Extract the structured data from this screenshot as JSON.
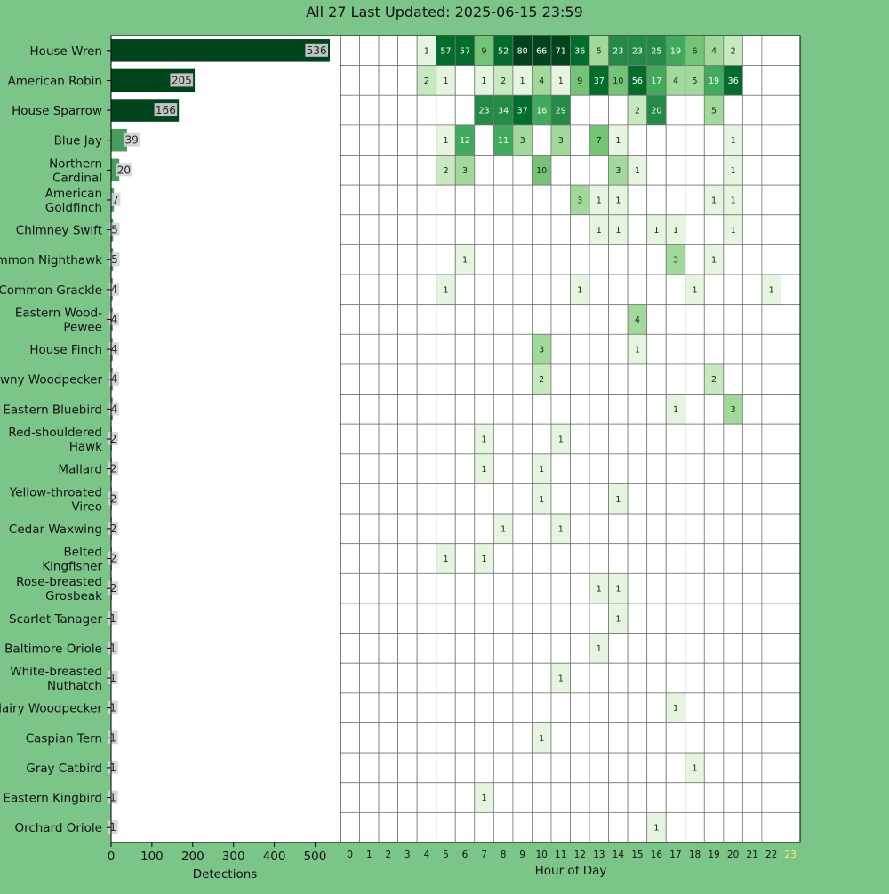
{
  "title": "All 27 Last Updated: 2025-06-15 23:59",
  "chart_data": [
    {
      "type": "bar",
      "orientation": "horizontal",
      "xlabel": "Detections",
      "xlim": [
        0,
        540
      ],
      "xticks": [
        0,
        100,
        200,
        300,
        400,
        500
      ],
      "categories": [
        "House Wren",
        "American Robin",
        "House Sparrow",
        "Blue Jay",
        "Northern Cardinal",
        "American Goldfinch",
        "Chimney Swift",
        "Common Nighthawk",
        "Common Grackle",
        "Eastern Wood-Pewee",
        "House Finch",
        "Downy Woodpecker",
        "Eastern Bluebird",
        "Red-shouldered Hawk",
        "Mallard",
        "Yellow-throated Vireo",
        "Cedar Waxwing",
        "Belted Kingfisher",
        "Rose-breasted Grosbeak",
        "Scarlet Tanager",
        "Baltimore Oriole",
        "White-breasted Nuthatch",
        "Hairy Woodpecker",
        "Caspian Tern",
        "Gray Catbird",
        "Eastern Kingbird",
        "Orchard Oriole"
      ],
      "values": [
        536,
        205,
        166,
        39,
        20,
        7,
        5,
        5,
        4,
        4,
        4,
        4,
        4,
        2,
        2,
        2,
        2,
        2,
        2,
        1,
        1,
        1,
        1,
        1,
        1,
        1,
        1
      ],
      "label_lines": [
        [
          "House Wren"
        ],
        [
          "American Robin"
        ],
        [
          "House Sparrow"
        ],
        [
          "Blue Jay"
        ],
        [
          "Northern",
          "Cardinal"
        ],
        [
          "American",
          "Goldfinch"
        ],
        [
          "Chimney Swift"
        ],
        [
          "Common Nighthawk"
        ],
        [
          "Common Grackle"
        ],
        [
          "Eastern Wood-",
          "Pewee"
        ],
        [
          "House Finch"
        ],
        [
          "Downy Woodpecker"
        ],
        [
          "Eastern Bluebird"
        ],
        [
          "Red-shouldered",
          "Hawk"
        ],
        [
          "Mallard"
        ],
        [
          "Yellow-throated",
          "Vireo"
        ],
        [
          "Cedar Waxwing"
        ],
        [
          "Belted",
          "Kingfisher"
        ],
        [
          "Rose-breasted",
          "Grosbeak"
        ],
        [
          "Scarlet Tanager"
        ],
        [
          "Baltimore Oriole"
        ],
        [
          "White-breasted",
          "Nuthatch"
        ],
        [
          "Hairy Woodpecker"
        ],
        [
          "Caspian Tern"
        ],
        [
          "Gray Catbird"
        ],
        [
          "Eastern Kingbird"
        ],
        [
          "Orchard Oriole"
        ]
      ]
    },
    {
      "type": "heatmap",
      "xlabel": "Hour of Day",
      "hours": [
        0,
        1,
        2,
        3,
        4,
        5,
        6,
        7,
        8,
        9,
        10,
        11,
        12,
        13,
        14,
        15,
        16,
        17,
        18,
        19,
        20,
        21,
        22,
        23
      ],
      "highlight_hour": 23,
      "rows": [
        [
          null,
          null,
          null,
          null,
          1,
          57,
          57,
          9,
          52,
          80,
          66,
          71,
          36,
          5,
          23,
          23,
          25,
          19,
          6,
          4,
          2,
          null,
          null,
          null
        ],
        [
          null,
          null,
          null,
          null,
          2,
          1,
          null,
          1,
          2,
          1,
          4,
          1,
          9,
          37,
          10,
          56,
          17,
          4,
          5,
          19,
          36,
          null,
          null,
          null
        ],
        [
          null,
          null,
          null,
          null,
          null,
          null,
          null,
          23,
          34,
          37,
          16,
          29,
          null,
          null,
          null,
          2,
          20,
          null,
          null,
          5,
          null,
          null,
          null,
          null
        ],
        [
          null,
          null,
          null,
          null,
          null,
          1,
          12,
          null,
          11,
          3,
          null,
          3,
          null,
          7,
          1,
          null,
          null,
          null,
          null,
          null,
          1,
          null,
          null,
          null
        ],
        [
          null,
          null,
          null,
          null,
          null,
          2,
          3,
          null,
          null,
          null,
          10,
          null,
          null,
          null,
          3,
          1,
          null,
          null,
          null,
          null,
          1,
          null,
          null,
          null
        ],
        [
          null,
          null,
          null,
          null,
          null,
          null,
          null,
          null,
          null,
          null,
          null,
          null,
          3,
          1,
          1,
          null,
          null,
          null,
          null,
          1,
          1,
          null,
          null,
          null
        ],
        [
          null,
          null,
          null,
          null,
          null,
          null,
          null,
          null,
          null,
          null,
          null,
          null,
          null,
          1,
          1,
          null,
          1,
          1,
          null,
          null,
          1,
          null,
          null,
          null
        ],
        [
          null,
          null,
          null,
          null,
          null,
          null,
          1,
          null,
          null,
          null,
          null,
          null,
          null,
          null,
          null,
          null,
          null,
          3,
          null,
          1,
          null,
          null,
          null,
          null
        ],
        [
          null,
          null,
          null,
          null,
          null,
          1,
          null,
          null,
          null,
          null,
          null,
          null,
          1,
          null,
          null,
          null,
          null,
          null,
          1,
          null,
          null,
          null,
          1,
          null
        ],
        [
          null,
          null,
          null,
          null,
          null,
          null,
          null,
          null,
          null,
          null,
          null,
          null,
          null,
          null,
          null,
          4,
          null,
          null,
          null,
          null,
          null,
          null,
          null,
          null
        ],
        [
          null,
          null,
          null,
          null,
          null,
          null,
          null,
          null,
          null,
          null,
          3,
          null,
          null,
          null,
          null,
          1,
          null,
          null,
          null,
          null,
          null,
          null,
          null,
          null
        ],
        [
          null,
          null,
          null,
          null,
          null,
          null,
          null,
          null,
          null,
          null,
          2,
          null,
          null,
          null,
          null,
          null,
          null,
          null,
          null,
          2,
          null,
          null,
          null,
          null
        ],
        [
          null,
          null,
          null,
          null,
          null,
          null,
          null,
          null,
          null,
          null,
          null,
          null,
          null,
          null,
          null,
          null,
          null,
          1,
          null,
          null,
          3,
          null,
          null,
          null
        ],
        [
          null,
          null,
          null,
          null,
          null,
          null,
          null,
          1,
          null,
          null,
          null,
          1,
          null,
          null,
          null,
          null,
          null,
          null,
          null,
          null,
          null,
          null,
          null,
          null
        ],
        [
          null,
          null,
          null,
          null,
          null,
          null,
          null,
          1,
          null,
          null,
          1,
          null,
          null,
          null,
          null,
          null,
          null,
          null,
          null,
          null,
          null,
          null,
          null,
          null
        ],
        [
          null,
          null,
          null,
          null,
          null,
          null,
          null,
          null,
          null,
          null,
          1,
          null,
          null,
          null,
          1,
          null,
          null,
          null,
          null,
          null,
          null,
          null,
          null,
          null
        ],
        [
          null,
          null,
          null,
          null,
          null,
          null,
          null,
          null,
          1,
          null,
          null,
          1,
          null,
          null,
          null,
          null,
          null,
          null,
          null,
          null,
          null,
          null,
          null,
          null
        ],
        [
          null,
          null,
          null,
          null,
          null,
          1,
          null,
          1,
          null,
          null,
          null,
          null,
          null,
          null,
          null,
          null,
          null,
          null,
          null,
          null,
          null,
          null,
          null,
          null
        ],
        [
          null,
          null,
          null,
          null,
          null,
          null,
          null,
          null,
          null,
          null,
          null,
          null,
          null,
          1,
          1,
          null,
          null,
          null,
          null,
          null,
          null,
          null,
          null,
          null
        ],
        [
          null,
          null,
          null,
          null,
          null,
          null,
          null,
          null,
          null,
          null,
          null,
          null,
          null,
          null,
          1,
          null,
          null,
          null,
          null,
          null,
          null,
          null,
          null,
          null
        ],
        [
          null,
          null,
          null,
          null,
          null,
          null,
          null,
          null,
          null,
          null,
          null,
          null,
          null,
          1,
          null,
          null,
          null,
          null,
          null,
          null,
          null,
          null,
          null,
          null
        ],
        [
          null,
          null,
          null,
          null,
          null,
          null,
          null,
          null,
          null,
          null,
          null,
          1,
          null,
          null,
          null,
          null,
          null,
          null,
          null,
          null,
          null,
          null,
          null,
          null
        ],
        [
          null,
          null,
          null,
          null,
          null,
          null,
          null,
          null,
          null,
          null,
          null,
          null,
          null,
          null,
          null,
          null,
          null,
          1,
          null,
          null,
          null,
          null,
          null,
          null
        ],
        [
          null,
          null,
          null,
          null,
          null,
          null,
          null,
          null,
          null,
          null,
          1,
          null,
          null,
          null,
          null,
          null,
          null,
          null,
          null,
          null,
          null,
          null,
          null,
          null
        ],
        [
          null,
          null,
          null,
          null,
          null,
          null,
          null,
          null,
          null,
          null,
          null,
          null,
          null,
          null,
          null,
          null,
          null,
          null,
          1,
          null,
          null,
          null,
          null,
          null
        ],
        [
          null,
          null,
          null,
          null,
          null,
          null,
          null,
          1,
          null,
          null,
          null,
          null,
          null,
          null,
          null,
          null,
          null,
          null,
          null,
          null,
          null,
          null,
          null,
          null
        ],
        [
          null,
          null,
          null,
          null,
          null,
          null,
          null,
          null,
          null,
          null,
          null,
          null,
          null,
          null,
          null,
          null,
          1,
          null,
          null,
          null,
          null,
          null,
          null,
          null
        ]
      ]
    }
  ],
  "colors": {
    "background": "#7bc589",
    "bar_dark": "#00441b",
    "bar_light": "#4a9c5c",
    "label_box": "#d3d3d3",
    "grid": "#777777",
    "highlight_tick": "#f4f45a",
    "heat_scale": [
      "#f7fcf5",
      "#e5f5e0",
      "#c7e9c0",
      "#a1d99b",
      "#74c476",
      "#41ab5d",
      "#238b45",
      "#006d2c",
      "#00441b"
    ]
  }
}
